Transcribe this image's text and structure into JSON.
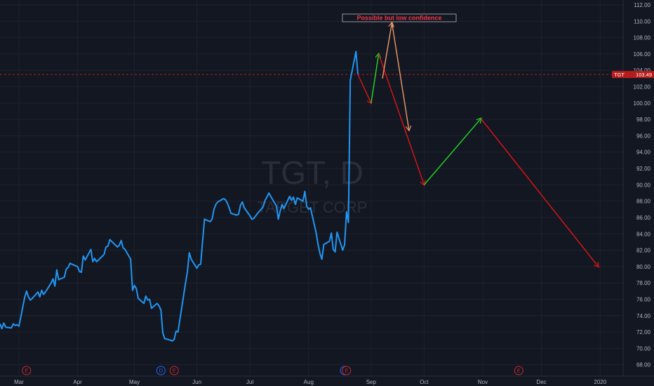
{
  "colors": {
    "background": "#131722",
    "grid": "#1e222d",
    "price_line": "#2196f3",
    "bear_arrow": "#e01414",
    "bull_arrow": "#22dd22",
    "low_conf_arrow": "#f0986a",
    "last_price_line": "#b71c1c",
    "axis_text": "#b2b5be",
    "event_marker": "#c62828",
    "dividend_marker": "#2962ff"
  },
  "watermark": {
    "symbol": "TGT, D",
    "company": "TARGET CORP"
  },
  "annotation": {
    "text": "Possible but low confidence"
  },
  "last_price": {
    "label": "TGT",
    "value": "103.49",
    "price": 103.49
  },
  "events": [
    {
      "label": "E",
      "kind": "earnings",
      "date": "2019-03-05"
    },
    {
      "label": "D",
      "kind": "dividend",
      "date": "2019-05-15"
    },
    {
      "label": "E",
      "kind": "earnings",
      "date": "2019-05-22"
    },
    {
      "label": "",
      "kind": "dividend",
      "date": "2019-08-20"
    },
    {
      "label": "E",
      "kind": "earnings",
      "date": "2019-08-21"
    },
    {
      "label": "E",
      "kind": "earnings",
      "date": "2019-11-20"
    }
  ],
  "chart_data": {
    "type": "line",
    "title": "",
    "xlabel": "",
    "ylabel": "",
    "x_ticks": [
      {
        "label": "Mar",
        "date": "2019-03-01"
      },
      {
        "label": "Apr",
        "date": "2019-04-01"
      },
      {
        "label": "May",
        "date": "2019-05-01"
      },
      {
        "label": "Jun",
        "date": "2019-06-03"
      },
      {
        "label": "Jul",
        "date": "2019-07-01"
      },
      {
        "label": "Aug",
        "date": "2019-08-01"
      },
      {
        "label": "Sep",
        "date": "2019-09-03"
      },
      {
        "label": "Oct",
        "date": "2019-10-01"
      },
      {
        "label": "Nov",
        "date": "2019-11-01"
      },
      {
        "label": "Dec",
        "date": "2019-12-02"
      },
      {
        "label": "2020",
        "date": "2020-01-02"
      }
    ],
    "y_ticks": [
      "68.00",
      "70.00",
      "72.00",
      "74.00",
      "76.00",
      "78.00",
      "80.00",
      "82.00",
      "84.00",
      "86.00",
      "88.00",
      "90.00",
      "92.00",
      "94.00",
      "96.00",
      "98.00",
      "100.00",
      "102.00",
      "104.00",
      "106.00",
      "108.00",
      "110.00",
      "112.00"
    ],
    "ylim": [
      66.6,
      112.6
    ],
    "xlim": [
      "2019-02-19",
      "2020-01-13"
    ],
    "grid": true,
    "series": [
      {
        "points": [
          [
            "2019-02-19",
            73.0
          ],
          [
            "2019-02-20",
            72.4
          ],
          [
            "2019-02-21",
            73.1
          ],
          [
            "2019-02-22",
            72.6
          ],
          [
            "2019-02-25",
            72.5
          ],
          [
            "2019-02-26",
            73.0
          ],
          [
            "2019-02-27",
            72.8
          ],
          [
            "2019-02-28",
            72.9
          ],
          [
            "2019-03-01",
            72.7
          ],
          [
            "2019-03-04",
            76.2
          ],
          [
            "2019-03-05",
            77.0
          ],
          [
            "2019-03-06",
            76.3
          ],
          [
            "2019-03-07",
            75.9
          ],
          [
            "2019-03-08",
            76.1
          ],
          [
            "2019-03-11",
            76.9
          ],
          [
            "2019-03-12",
            76.3
          ],
          [
            "2019-03-13",
            77.1
          ],
          [
            "2019-03-14",
            76.6
          ],
          [
            "2019-03-15",
            76.9
          ],
          [
            "2019-03-18",
            78.0
          ],
          [
            "2019-03-19",
            78.5
          ],
          [
            "2019-03-20",
            77.6
          ],
          [
            "2019-03-21",
            79.6
          ],
          [
            "2019-03-22",
            78.4
          ],
          [
            "2019-03-25",
            78.7
          ],
          [
            "2019-03-26",
            79.7
          ],
          [
            "2019-03-27",
            79.9
          ],
          [
            "2019-03-28",
            80.4
          ],
          [
            "2019-03-29",
            80.3
          ],
          [
            "2019-04-01",
            80.0
          ],
          [
            "2019-04-02",
            79.4
          ],
          [
            "2019-04-03",
            79.3
          ],
          [
            "2019-04-04",
            81.3
          ],
          [
            "2019-04-05",
            80.8
          ],
          [
            "2019-04-08",
            82.1
          ],
          [
            "2019-04-09",
            80.6
          ],
          [
            "2019-04-10",
            81.0
          ],
          [
            "2019-04-11",
            80.6
          ],
          [
            "2019-04-12",
            80.8
          ],
          [
            "2019-04-15",
            81.5
          ],
          [
            "2019-04-16",
            82.4
          ],
          [
            "2019-04-17",
            82.5
          ],
          [
            "2019-04-18",
            83.3
          ],
          [
            "2019-04-22",
            82.4
          ],
          [
            "2019-04-23",
            82.6
          ],
          [
            "2019-04-24",
            83.2
          ],
          [
            "2019-04-25",
            82.3
          ],
          [
            "2019-04-26",
            82.1
          ],
          [
            "2019-04-29",
            80.9
          ],
          [
            "2019-04-30",
            77.1
          ],
          [
            "2019-05-01",
            77.7
          ],
          [
            "2019-05-02",
            77.3
          ],
          [
            "2019-05-03",
            76.1
          ],
          [
            "2019-05-06",
            75.5
          ],
          [
            "2019-05-07",
            76.4
          ],
          [
            "2019-05-08",
            75.9
          ],
          [
            "2019-05-09",
            76.0
          ],
          [
            "2019-05-10",
            74.9
          ],
          [
            "2019-05-13",
            75.5
          ],
          [
            "2019-05-14",
            75.2
          ],
          [
            "2019-05-15",
            74.7
          ],
          [
            "2019-05-16",
            71.9
          ],
          [
            "2019-05-17",
            71.2
          ],
          [
            "2019-05-20",
            71.0
          ],
          [
            "2019-05-21",
            70.9
          ],
          [
            "2019-05-22",
            71.1
          ],
          [
            "2019-05-23",
            72.1
          ],
          [
            "2019-05-24",
            72.0
          ],
          [
            "2019-05-28",
            78.0
          ],
          [
            "2019-05-29",
            79.4
          ],
          [
            "2019-05-30",
            81.7
          ],
          [
            "2019-05-31",
            80.9
          ],
          [
            "2019-06-03",
            79.8
          ],
          [
            "2019-06-04",
            80.2
          ],
          [
            "2019-06-05",
            80.3
          ],
          [
            "2019-06-06",
            83.1
          ],
          [
            "2019-06-07",
            85.8
          ],
          [
            "2019-06-10",
            85.5
          ],
          [
            "2019-06-11",
            85.8
          ],
          [
            "2019-06-12",
            87.0
          ],
          [
            "2019-06-13",
            87.6
          ],
          [
            "2019-06-14",
            87.9
          ],
          [
            "2019-06-17",
            88.3
          ],
          [
            "2019-06-18",
            88.2
          ],
          [
            "2019-06-19",
            87.8
          ],
          [
            "2019-06-20",
            87.2
          ],
          [
            "2019-06-21",
            86.5
          ],
          [
            "2019-06-24",
            86.3
          ],
          [
            "2019-06-25",
            86.4
          ],
          [
            "2019-06-26",
            87.5
          ],
          [
            "2019-06-27",
            87.9
          ],
          [
            "2019-06-28",
            87.2
          ],
          [
            "2019-07-01",
            86.2
          ],
          [
            "2019-07-02",
            85.8
          ],
          [
            "2019-07-03",
            85.9
          ],
          [
            "2019-07-05",
            86.5
          ],
          [
            "2019-07-08",
            87.3
          ],
          [
            "2019-07-09",
            88.1
          ],
          [
            "2019-07-10",
            88.5
          ],
          [
            "2019-07-11",
            89.0
          ],
          [
            "2019-07-12",
            88.6
          ],
          [
            "2019-07-15",
            87.4
          ],
          [
            "2019-07-16",
            85.8
          ],
          [
            "2019-07-17",
            86.8
          ],
          [
            "2019-07-18",
            87.6
          ],
          [
            "2019-07-19",
            87.1
          ],
          [
            "2019-07-22",
            88.6
          ],
          [
            "2019-07-23",
            88.1
          ],
          [
            "2019-07-24",
            88.5
          ],
          [
            "2019-07-25",
            87.6
          ],
          [
            "2019-07-26",
            88.4
          ],
          [
            "2019-07-29",
            88.0
          ],
          [
            "2019-07-30",
            89.2
          ],
          [
            "2019-07-31",
            87.4
          ],
          [
            "2019-08-01",
            87.0
          ],
          [
            "2019-08-02",
            87.2
          ],
          [
            "2019-08-05",
            84.1
          ],
          [
            "2019-08-06",
            82.7
          ],
          [
            "2019-08-07",
            81.6
          ],
          [
            "2019-08-08",
            80.9
          ],
          [
            "2019-08-09",
            82.7
          ],
          [
            "2019-08-12",
            83.1
          ],
          [
            "2019-08-13",
            84.1
          ],
          [
            "2019-08-14",
            82.1
          ],
          [
            "2019-08-15",
            81.8
          ],
          [
            "2019-08-16",
            84.2
          ],
          [
            "2019-08-19",
            82.0
          ],
          [
            "2019-08-20",
            82.7
          ],
          [
            "2019-08-21",
            86.7
          ],
          [
            "2019-08-22",
            85.4
          ],
          [
            "2019-08-23",
            102.8
          ],
          [
            "2019-08-26",
            106.3
          ],
          [
            "2019-08-27",
            103.5
          ]
        ]
      }
    ],
    "projections": [
      {
        "kind": "bearish",
        "from": [
          "2019-08-27",
          103.5
        ],
        "to": [
          "2019-09-03",
          100.0
        ]
      },
      {
        "kind": "bullish",
        "from": [
          "2019-09-03",
          100.0
        ],
        "to": [
          "2019-09-07",
          106.0
        ]
      },
      {
        "kind": "bearish",
        "from": [
          "2019-09-07",
          106.0
        ],
        "to": [
          "2019-10-01",
          90.0
        ]
      },
      {
        "kind": "low_confidence",
        "from": [
          "2019-09-09",
          103.0
        ],
        "to": [
          "2019-09-14",
          109.8
        ]
      },
      {
        "kind": "low_confidence",
        "from": [
          "2019-09-14",
          109.8
        ],
        "to": [
          "2019-09-23",
          96.7
        ]
      },
      {
        "kind": "bullish",
        "from": [
          "2019-10-01",
          90.0
        ],
        "to": [
          "2019-10-31",
          98.1
        ]
      },
      {
        "kind": "bearish",
        "from": [
          "2019-10-31",
          98.1
        ],
        "to": [
          "2020-01-01",
          80.0
        ]
      }
    ]
  }
}
